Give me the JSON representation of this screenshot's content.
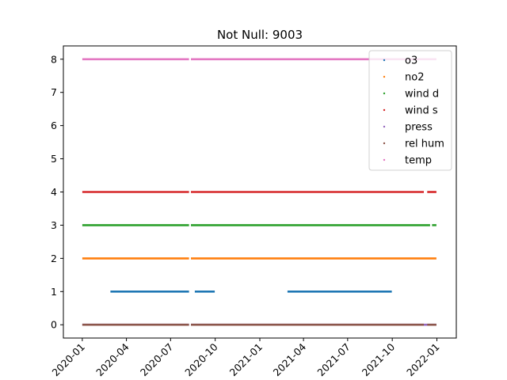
{
  "chart_data": {
    "type": "scatter",
    "title": "Not Null: 9003",
    "xlabel": "",
    "ylabel": "",
    "x_ticks": [
      "2020-01",
      "2020-04",
      "2020-07",
      "2020-10",
      "2021-01",
      "2021-04",
      "2021-07",
      "2021-10",
      "2022-01"
    ],
    "y_ticks": [
      "0",
      "1",
      "2",
      "3",
      "4",
      "5",
      "6",
      "7",
      "8"
    ],
    "xlim": [
      "2019-11-23",
      "2022-02-10"
    ],
    "ylim": [
      -0.4,
      8.4
    ],
    "legend_position": "top-right",
    "grid": false,
    "series": [
      {
        "name": "o3",
        "y": 1,
        "color": "#1f77b4",
        "segments": [
          [
            "2020-02-28",
            "2020-08-08"
          ],
          [
            "2020-08-20",
            "2020-09-30"
          ],
          [
            "2021-02-27",
            "2021-09-30"
          ]
        ]
      },
      {
        "name": "no2",
        "y": 2,
        "color": "#ff7f0e",
        "segments": [
          [
            "2020-01-01",
            "2020-08-08"
          ],
          [
            "2020-08-12",
            "2021-12-31"
          ]
        ]
      },
      {
        "name": "wind d",
        "y": 3,
        "color": "#2ca02c",
        "segments": [
          [
            "2020-01-01",
            "2020-08-08"
          ],
          [
            "2020-08-12",
            "2021-12-18"
          ],
          [
            "2021-12-22",
            "2021-12-31"
          ]
        ]
      },
      {
        "name": "wind s",
        "y": 4,
        "color": "#d62728",
        "segments": [
          [
            "2020-01-01",
            "2020-08-08"
          ],
          [
            "2020-08-12",
            "2021-12-05"
          ],
          [
            "2021-12-12",
            "2021-12-31"
          ]
        ]
      },
      {
        "name": "press",
        "y": 0,
        "color": "#9467bd",
        "segments": [
          [
            "2020-01-01",
            "2020-08-08"
          ],
          [
            "2020-08-12",
            "2021-12-31"
          ]
        ]
      },
      {
        "name": "rel hum",
        "y": 0,
        "color": "#8c564b",
        "segments": [
          [
            "2020-01-01",
            "2020-08-08"
          ],
          [
            "2020-08-12",
            "2021-12-05"
          ],
          [
            "2021-12-12",
            "2021-12-31"
          ]
        ]
      },
      {
        "name": "temp",
        "y": 8,
        "color": "#e377c2",
        "segments": [
          [
            "2020-01-01",
            "2020-08-08"
          ],
          [
            "2020-08-12",
            "2021-12-31"
          ]
        ]
      }
    ]
  }
}
